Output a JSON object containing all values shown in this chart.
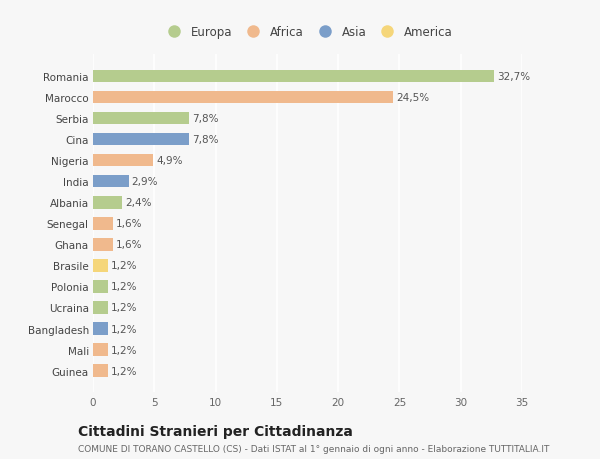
{
  "countries": [
    "Romania",
    "Marocco",
    "Serbia",
    "Cina",
    "Nigeria",
    "India",
    "Albania",
    "Senegal",
    "Ghana",
    "Brasile",
    "Polonia",
    "Ucraina",
    "Bangladesh",
    "Mali",
    "Guinea"
  ],
  "values": [
    32.7,
    24.5,
    7.8,
    7.8,
    4.9,
    2.9,
    2.4,
    1.6,
    1.6,
    1.2,
    1.2,
    1.2,
    1.2,
    1.2,
    1.2
  ],
  "labels": [
    "32,7%",
    "24,5%",
    "7,8%",
    "7,8%",
    "4,9%",
    "2,9%",
    "2,4%",
    "1,6%",
    "1,6%",
    "1,2%",
    "1,2%",
    "1,2%",
    "1,2%",
    "1,2%",
    "1,2%"
  ],
  "continents": [
    "Europa",
    "Africa",
    "Europa",
    "Asia",
    "Africa",
    "Asia",
    "Europa",
    "Africa",
    "Africa",
    "America",
    "Europa",
    "Europa",
    "Asia",
    "Africa",
    "Africa"
  ],
  "continent_colors": {
    "Europa": "#b5cc8e",
    "Africa": "#f0b98d",
    "Asia": "#7b9ec9",
    "America": "#f5d67a"
  },
  "legend_order": [
    "Europa",
    "Africa",
    "Asia",
    "America"
  ],
  "xlim": [
    0,
    35
  ],
  "xticks": [
    0,
    5,
    10,
    15,
    20,
    25,
    30,
    35
  ],
  "title": "Cittadini Stranieri per Cittadinanza",
  "subtitle": "COMUNE DI TORANO CASTELLO (CS) - Dati ISTAT al 1° gennaio di ogni anno - Elaborazione TUTTITALIA.IT",
  "bg_color": "#f7f7f7",
  "grid_color": "#ffffff",
  "bar_height": 0.6,
  "label_fontsize": 7.5,
  "tick_fontsize": 7.5,
  "title_fontsize": 10,
  "subtitle_fontsize": 6.5
}
